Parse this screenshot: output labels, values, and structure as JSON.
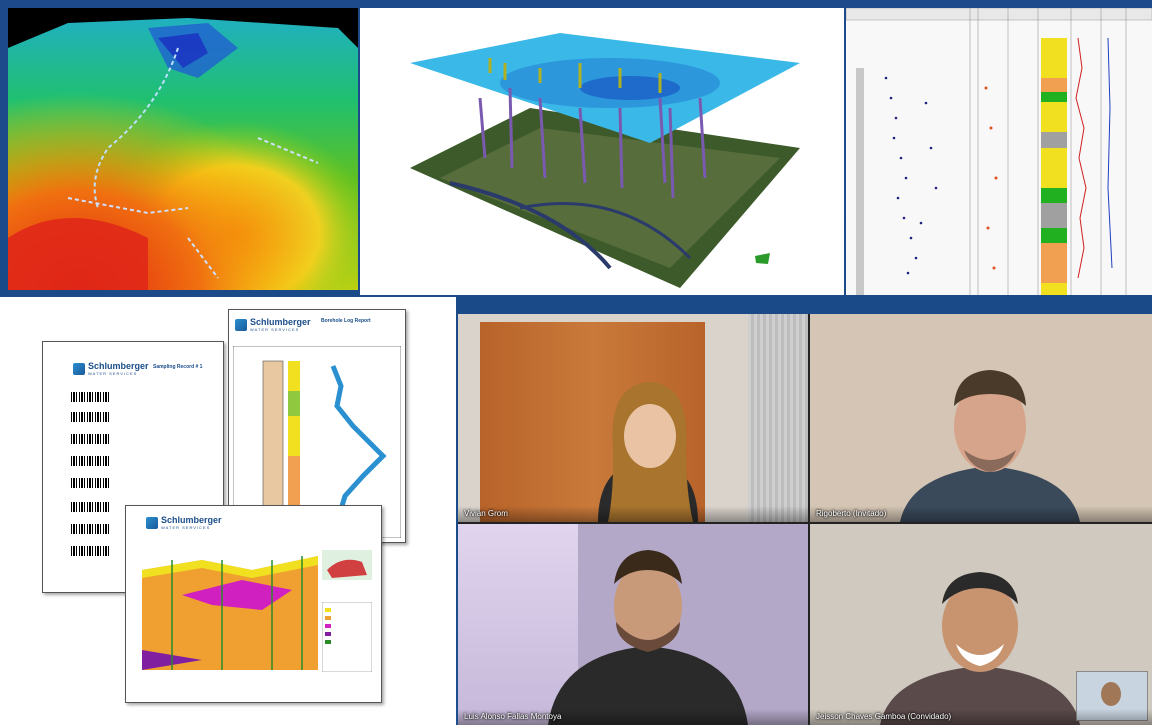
{
  "collage": {
    "documents": {
      "sampling_report": {
        "brand": "Schlumberger",
        "brand_sub": "WATER SERVICES",
        "title": "Sampling Record # 1"
      },
      "borehole_report": {
        "brand": "Schlumberger",
        "brand_sub": "WATER SERVICES",
        "title": "Borehole Log Report"
      },
      "cross_section": {
        "brand": "Schlumberger",
        "brand_sub": "WATER SERVICES"
      }
    }
  },
  "video_call": {
    "participants": [
      {
        "name": "Vivian Grom"
      },
      {
        "name": "Rigoberto (Invitado)"
      },
      {
        "name": "Luis Alonso Fallas Montoya"
      },
      {
        "name": "Jeisson Chaves Gamboa (Convidado)"
      }
    ]
  },
  "colors": {
    "background": "#1d4a8a",
    "brand_blue": "#1b4e8a"
  }
}
